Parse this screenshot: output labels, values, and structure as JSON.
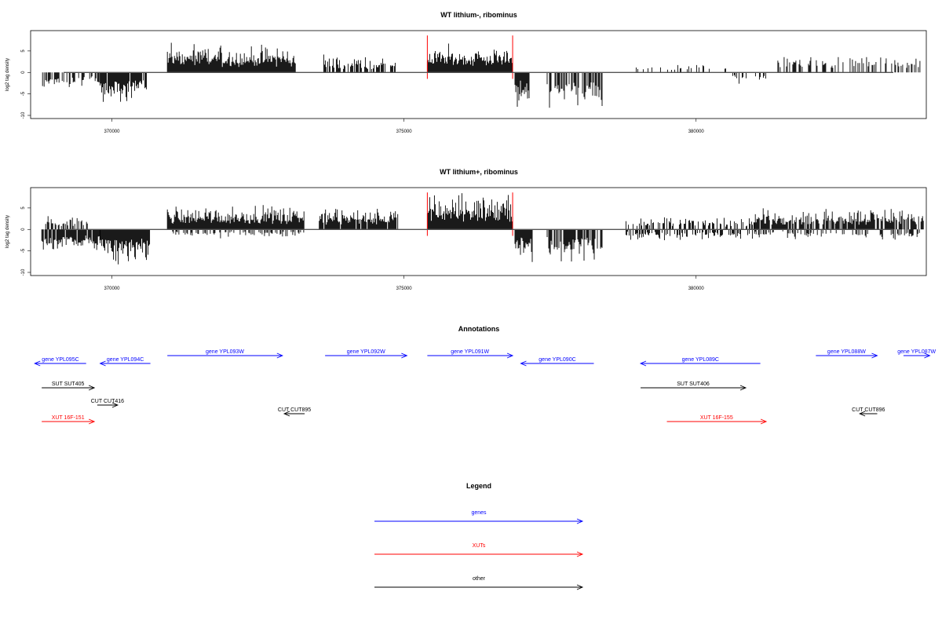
{
  "chart_data": [
    {
      "type": "bar",
      "title": "WT lithium-, ribominus",
      "ylabel": "log2 tag density",
      "xlim": [
        368650,
        383900
      ],
      "ylim": [
        -10,
        9
      ],
      "xticks": [
        "370000",
        "375000",
        "380000"
      ],
      "xtick_values": [
        370000,
        375000,
        380000
      ],
      "yticks": [
        "-10",
        "-5",
        "0",
        "5"
      ],
      "ytick_values": [
        -10,
        -5,
        0,
        5
      ],
      "highlight_x": [
        375400,
        376860
      ],
      "highlight_color": "#ff0000",
      "segments": [
        {
          "x0": 368800,
          "x1": 369800,
          "sign": -1,
          "amp": 3.0,
          "density": 0.5
        },
        {
          "x0": 369800,
          "x1": 370600,
          "sign": -1,
          "amp": 5.5,
          "density": 0.9
        },
        {
          "x0": 370950,
          "x1": 373150,
          "sign": 1,
          "amp": 5.0,
          "density": 1.0
        },
        {
          "x0": 373600,
          "x1": 374850,
          "sign": 1,
          "amp": 3.0,
          "density": 0.6
        },
        {
          "x0": 375400,
          "x1": 376860,
          "sign": 1,
          "amp": 5.0,
          "density": 1.0
        },
        {
          "x0": 376900,
          "x1": 377150,
          "sign": -1,
          "amp": 6.5,
          "density": 1.0
        },
        {
          "x0": 377450,
          "x1": 378400,
          "sign": -1,
          "amp": 6.5,
          "density": 0.6
        },
        {
          "x0": 378800,
          "x1": 380600,
          "sign": 1,
          "amp": 1.5,
          "density": 0.15
        },
        {
          "x0": 380600,
          "x1": 381200,
          "sign": -1,
          "amp": 2.0,
          "density": 0.3
        },
        {
          "x0": 381400,
          "x1": 383900,
          "sign": 1,
          "amp": 3.0,
          "density": 0.35
        }
      ]
    },
    {
      "type": "bar",
      "title": "WT lithium+, ribominus",
      "ylabel": "log2 tag density",
      "xlim": [
        368650,
        383900
      ],
      "ylim": [
        -10,
        9
      ],
      "xticks": [
        "370000",
        "375000",
        "380000"
      ],
      "xtick_values": [
        370000,
        375000,
        380000
      ],
      "yticks": [
        "-10",
        "-5",
        "0",
        "5"
      ],
      "ytick_values": [
        -10,
        -5,
        0,
        5
      ],
      "highlight_x": [
        375400,
        376860
      ],
      "highlight_color": "#ff0000",
      "segments": [
        {
          "x0": 368800,
          "x1": 369800,
          "sign": -1,
          "amp": 4.5,
          "density": 0.9
        },
        {
          "x0": 368800,
          "x1": 369600,
          "sign": 1,
          "amp": 2.5,
          "density": 0.4
        },
        {
          "x0": 369800,
          "x1": 370650,
          "sign": -1,
          "amp": 6.5,
          "density": 1.0
        },
        {
          "x0": 370950,
          "x1": 373300,
          "sign": 1,
          "amp": 4.5,
          "density": 1.0
        },
        {
          "x0": 371000,
          "x1": 373300,
          "sign": -1,
          "amp": 1.5,
          "density": 0.3
        },
        {
          "x0": 373550,
          "x1": 374900,
          "sign": 1,
          "amp": 4.0,
          "density": 0.9
        },
        {
          "x0": 375400,
          "x1": 376860,
          "sign": 1,
          "amp": 6.5,
          "density": 1.0
        },
        {
          "x0": 376900,
          "x1": 377200,
          "sign": -1,
          "amp": 6.0,
          "density": 1.0
        },
        {
          "x0": 377450,
          "x1": 378400,
          "sign": -1,
          "amp": 6.5,
          "density": 0.7
        },
        {
          "x0": 378800,
          "x1": 381000,
          "sign": 1,
          "amp": 2.5,
          "density": 0.5
        },
        {
          "x0": 378800,
          "x1": 381000,
          "sign": -1,
          "amp": 2.0,
          "density": 0.4
        },
        {
          "x0": 381000,
          "x1": 383900,
          "sign": 1,
          "amp": 4.0,
          "density": 0.8
        },
        {
          "x0": 381000,
          "x1": 383900,
          "sign": -1,
          "amp": 1.8,
          "density": 0.35
        }
      ]
    }
  ],
  "annotations": {
    "title": "Annotations",
    "features": [
      {
        "label": "gene YPL095C",
        "color": "#0000ff",
        "strand": "-",
        "x0": 368680,
        "x1": 369560,
        "row": 0
      },
      {
        "label": "gene YPL094C",
        "color": "#0000ff",
        "strand": "-",
        "x0": 369800,
        "x1": 370660,
        "row": 0
      },
      {
        "label": "gene YPL093W",
        "color": "#0000ff",
        "strand": "+",
        "x0": 370950,
        "x1": 372920,
        "row": -1
      },
      {
        "label": "gene YPL092W",
        "color": "#0000ff",
        "strand": "+",
        "x0": 373650,
        "x1": 375050,
        "row": -1
      },
      {
        "label": "gene YPL091W",
        "color": "#0000ff",
        "strand": "+",
        "x0": 375400,
        "x1": 376860,
        "row": -1
      },
      {
        "label": "gene YPL090C",
        "color": "#0000ff",
        "strand": "-",
        "x0": 377000,
        "x1": 378250,
        "row": 0
      },
      {
        "label": "gene YPL089C",
        "color": "#0000ff",
        "strand": "-",
        "x0": 379050,
        "x1": 381100,
        "row": 0
      },
      {
        "label": "gene YPL088W",
        "color": "#0000ff",
        "strand": "+",
        "x0": 382050,
        "x1": 383100,
        "row": -1
      },
      {
        "label": "gene YPL087W",
        "color": "#0000ff",
        "strand": "+",
        "x0": 383550,
        "x1": 384000,
        "row": -1
      },
      {
        "label": "SUT SUT405",
        "color": "#000000",
        "strand": "+",
        "x0": 368800,
        "x1": 369700,
        "row": 1
      },
      {
        "label": "CUT CUT416",
        "color": "#000000",
        "strand": "+",
        "x0": 369750,
        "x1": 370100,
        "row": 2
      },
      {
        "label": "CUT CUT895",
        "color": "#000000",
        "strand": "-",
        "x0": 372950,
        "x1": 373300,
        "row": 3
      },
      {
        "label": "SUT SUT406",
        "color": "#000000",
        "strand": "+",
        "x0": 379050,
        "x1": 380850,
        "row": 1
      },
      {
        "label": "CUT CUT896",
        "color": "#000000",
        "strand": "-",
        "x0": 382800,
        "x1": 383100,
        "row": 3
      },
      {
        "label": "XUT 16F-151",
        "color": "#ff0000",
        "strand": "+",
        "x0": 368800,
        "x1": 369700,
        "row": 4
      },
      {
        "label": "XUT 16F-155",
        "color": "#ff0000",
        "strand": "+",
        "x0": 379500,
        "x1": 381200,
        "row": 4
      }
    ]
  },
  "legend": {
    "title": "Legend",
    "items": [
      {
        "label": "genes",
        "color": "#0000ff"
      },
      {
        "label": "XUTs",
        "color": "#ff0000"
      },
      {
        "label": "other",
        "color": "#000000"
      }
    ]
  }
}
